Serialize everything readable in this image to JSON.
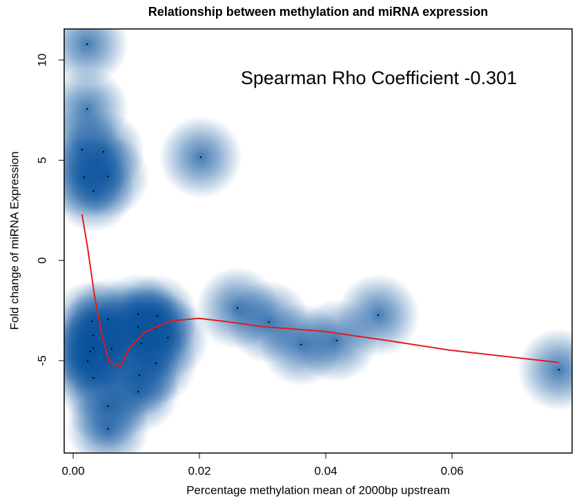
{
  "chart_data": {
    "type": "scatter",
    "title": "Relationship between methylation and miRNA expression",
    "xlabel": "Percentage methylation mean of 2000bp upstream",
    "ylabel": "Fold change of miRNA Expression",
    "annotation": "Spearman Rho Coefficient  -0.301",
    "x": [
      0.0022,
      0.0022,
      0.0014,
      0.0048,
      0.0017,
      0.0055,
      0.0032,
      0.0202,
      0.026,
      0.031,
      0.0361,
      0.0417,
      0.0483,
      0.0769,
      0.003,
      0.0055,
      0.0032,
      0.0032,
      0.0027,
      0.0023,
      0.0032,
      0.0061,
      0.0055,
      0.0055,
      0.0103,
      0.0103,
      0.0133,
      0.0129,
      0.0108,
      0.015,
      0.0131,
      0.0105,
      0.0103
    ],
    "values": [
      10.79,
      7.56,
      5.53,
      5.42,
      4.15,
      4.19,
      3.46,
      5.15,
      -2.38,
      -3.07,
      -4.2,
      -4.0,
      -2.73,
      -5.45,
      -3.04,
      -2.93,
      -3.76,
      -4.38,
      -4.55,
      -5.03,
      -5.86,
      -4.41,
      -7.27,
      -8.4,
      -2.69,
      -3.31,
      -2.76,
      -3.38,
      -4.14,
      -3.86,
      -5.13,
      -5.72,
      -6.55
    ],
    "color": "#08519c",
    "smooth": {
      "color": "#e31a1c",
      "x": [
        0.0014,
        0.0023,
        0.0034,
        0.0045,
        0.0057,
        0.0075,
        0.0089,
        0.0114,
        0.0152,
        0.0199,
        0.0245,
        0.0299,
        0.0398,
        0.0496,
        0.0595,
        0.0769
      ],
      "values": [
        2.3,
        0.62,
        -1.79,
        -3.65,
        -5.06,
        -5.3,
        -4.37,
        -3.58,
        -3.03,
        -2.89,
        -3.06,
        -3.3,
        -3.54,
        -3.99,
        -4.47,
        -5.09
      ]
    },
    "xlim": [
      -0.00142,
      0.079
    ],
    "ylim": [
      -9.61,
      11.55
    ],
    "xticks": [
      {
        "value": 0,
        "label": "0.00"
      },
      0.02,
      0.04,
      0.06
    ],
    "yticks": [
      -5,
      0,
      5,
      10
    ]
  }
}
